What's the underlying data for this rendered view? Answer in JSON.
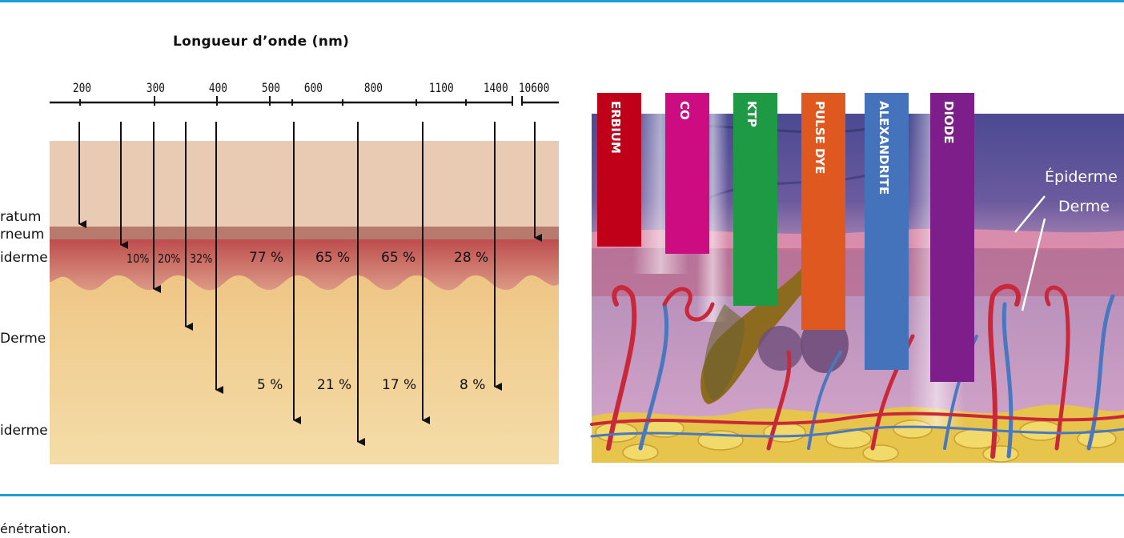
{
  "diagram": {
    "axis_title": "Longueur d’onde (nm)",
    "wavelength_ticks": [
      "200",
      "300",
      "400",
      "500",
      "600",
      "800",
      "1100",
      "1400",
      "10600"
    ],
    "layer_labels": {
      "stratum_line1": "ratum",
      "stratum_line2": "rneum",
      "epiderme": "iderme",
      "derme": "Derme",
      "hypoderme": "iderme"
    },
    "penetration_upper": [
      "10%",
      "20%",
      "32%",
      "77 %",
      "65 %",
      "65 %",
      "28 %"
    ],
    "penetration_lower": [
      "5 %",
      "21 %",
      "17 %",
      "8 %"
    ],
    "colors": {
      "accent_rule": "#1aa0d8",
      "stratum_corneum": "#b87a6c",
      "epidermis_top": "#e9cbb3"
    }
  },
  "lasers": [
    {
      "name": "ERBIUM",
      "color": "#c00018"
    },
    {
      "name": "CO",
      "color": "#cc0c80"
    },
    {
      "name": "KTP",
      "color": "#1e9a44"
    },
    {
      "name": "PULSE DYE",
      "color": "#de5820"
    },
    {
      "name": "ALEXANDRITE",
      "color": "#4472bb"
    },
    {
      "name": "DIODE",
      "color": "#7e1e8a"
    }
  ],
  "photo_labels": {
    "epiderme": "Épiderme",
    "derme": "Derme"
  },
  "caption": "énétration."
}
